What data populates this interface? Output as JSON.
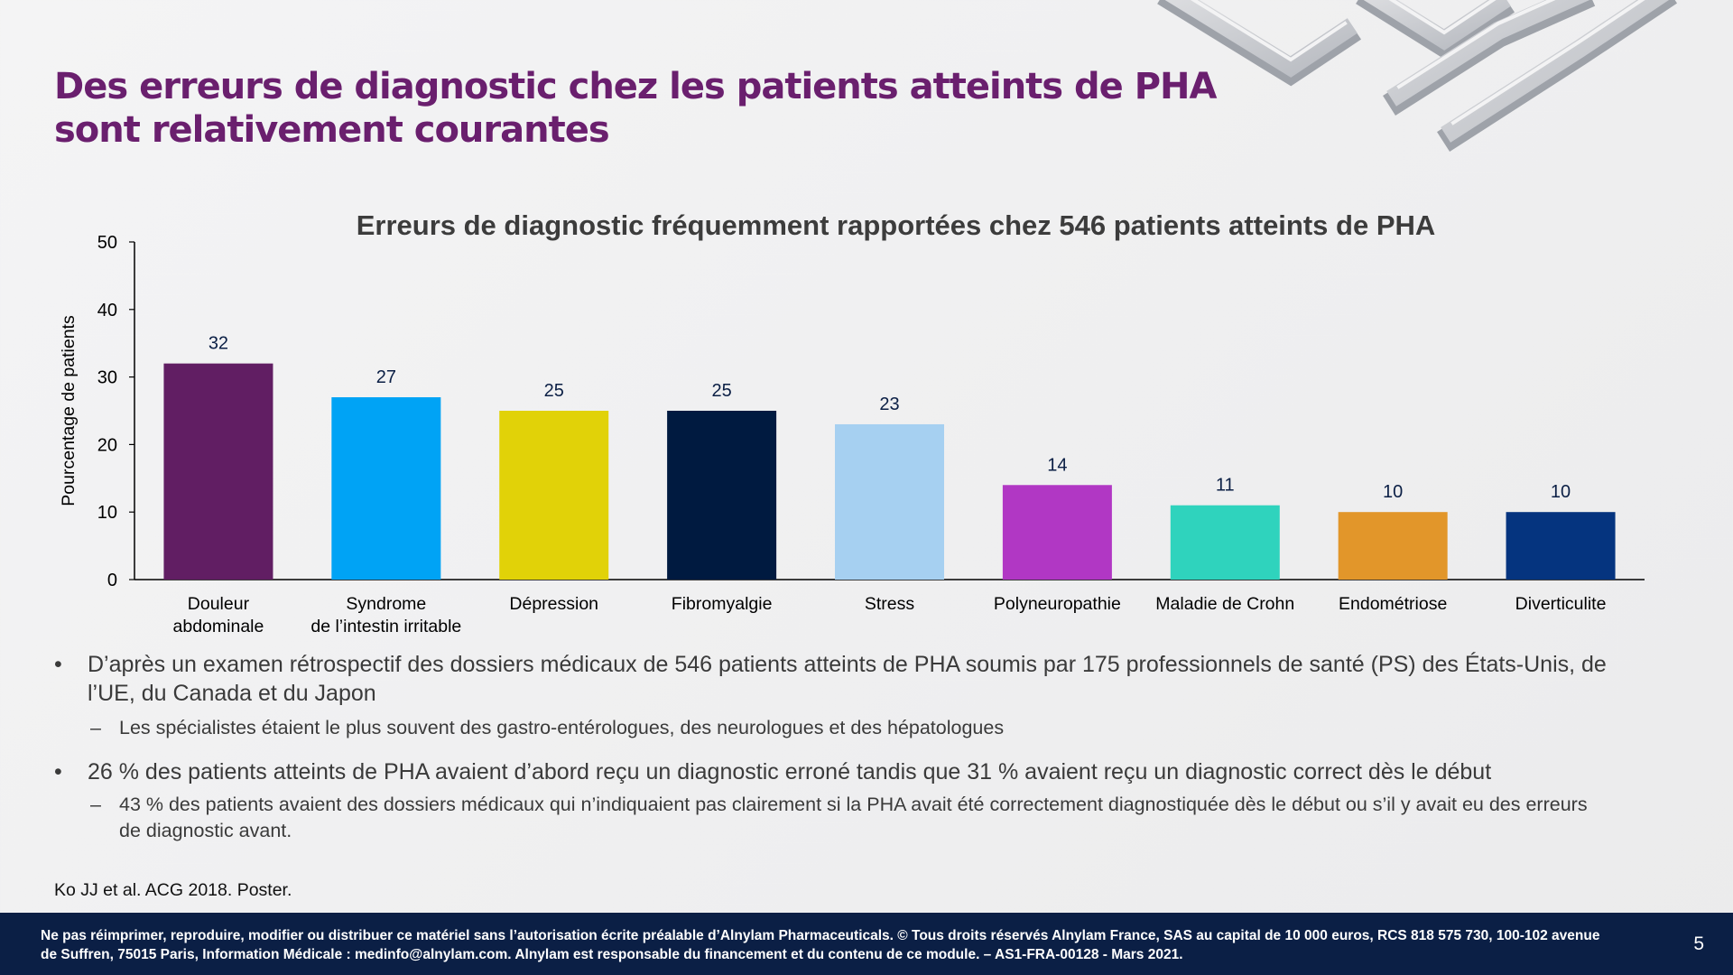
{
  "slide": {
    "title": "Des erreurs de diagnostic chez les patients atteints de PHA sont relativement courantes",
    "page_number": "5"
  },
  "chart_data": {
    "type": "bar",
    "title": "Erreurs de diagnostic fréquemment rapportées chez 546 patients atteints de PHA",
    "xlabel": "",
    "ylabel": "Pourcentage de patients",
    "ylim": [
      0,
      50
    ],
    "yticks": [
      0,
      10,
      20,
      30,
      40,
      50
    ],
    "categories": [
      [
        "Douleur",
        "abdominale"
      ],
      [
        "Syndrome",
        "de l’intestin irritable"
      ],
      [
        "Dépression"
      ],
      [
        "Fibromyalgie"
      ],
      [
        "Stress"
      ],
      [
        "Polyneuropathie"
      ],
      [
        "Maladie de Crohn"
      ],
      [
        "Endométriose"
      ],
      [
        "Diverticulite"
      ]
    ],
    "values": [
      32,
      27,
      25,
      25,
      23,
      14,
      11,
      10,
      10
    ],
    "colors": [
      "#611e63",
      "#00a3f5",
      "#e1d208",
      "#001a40",
      "#a6d0f1",
      "#b137c4",
      "#2fd3bd",
      "#e2962a",
      "#05347f"
    ],
    "grid": false,
    "legend": "none"
  },
  "bullets": [
    {
      "text": "D’après un examen rétrospectif des dossiers médicaux de 546 patients atteints de PHA soumis par 175 professionnels de santé (PS) des États-Unis, de l’UE, du Canada et du Japon",
      "sub": "Les spécialistes étaient le plus souvent des gastro-entérologues, des neurologues et des hépatologues"
    },
    {
      "text": "26 % des patients atteints de PHA avaient d’abord reçu un diagnostic erroné tandis que 31 % avaient reçu un diagnostic correct dès le début",
      "sub": "43 % des patients avaient des dossiers médicaux qui n’indiquaient pas clairement si la PHA avait été correctement diagnostiquée dès le début ou s’il y avait eu des erreurs de diagnostic avant."
    }
  ],
  "bullet_marker": "•",
  "sub_marker": "–",
  "reference": "Ko JJ et al. ACG  2018. Poster.",
  "footer": "Ne pas réimprimer, reproduire, modifier ou distribuer ce matériel sans l’autorisation écrite préalable d’Alnylam Pharmaceuticals. © Tous droits réservés Alnylam France, SAS au capital de 10 000 euros, RCS 818 575 730, 100-102 avenue de Suffren, 75015 Paris, Information Médicale : medinfo@alnylam.com. Alnylam est responsable du financement et du contenu de ce module. – AS1-FRA-00128 - Mars 2021."
}
